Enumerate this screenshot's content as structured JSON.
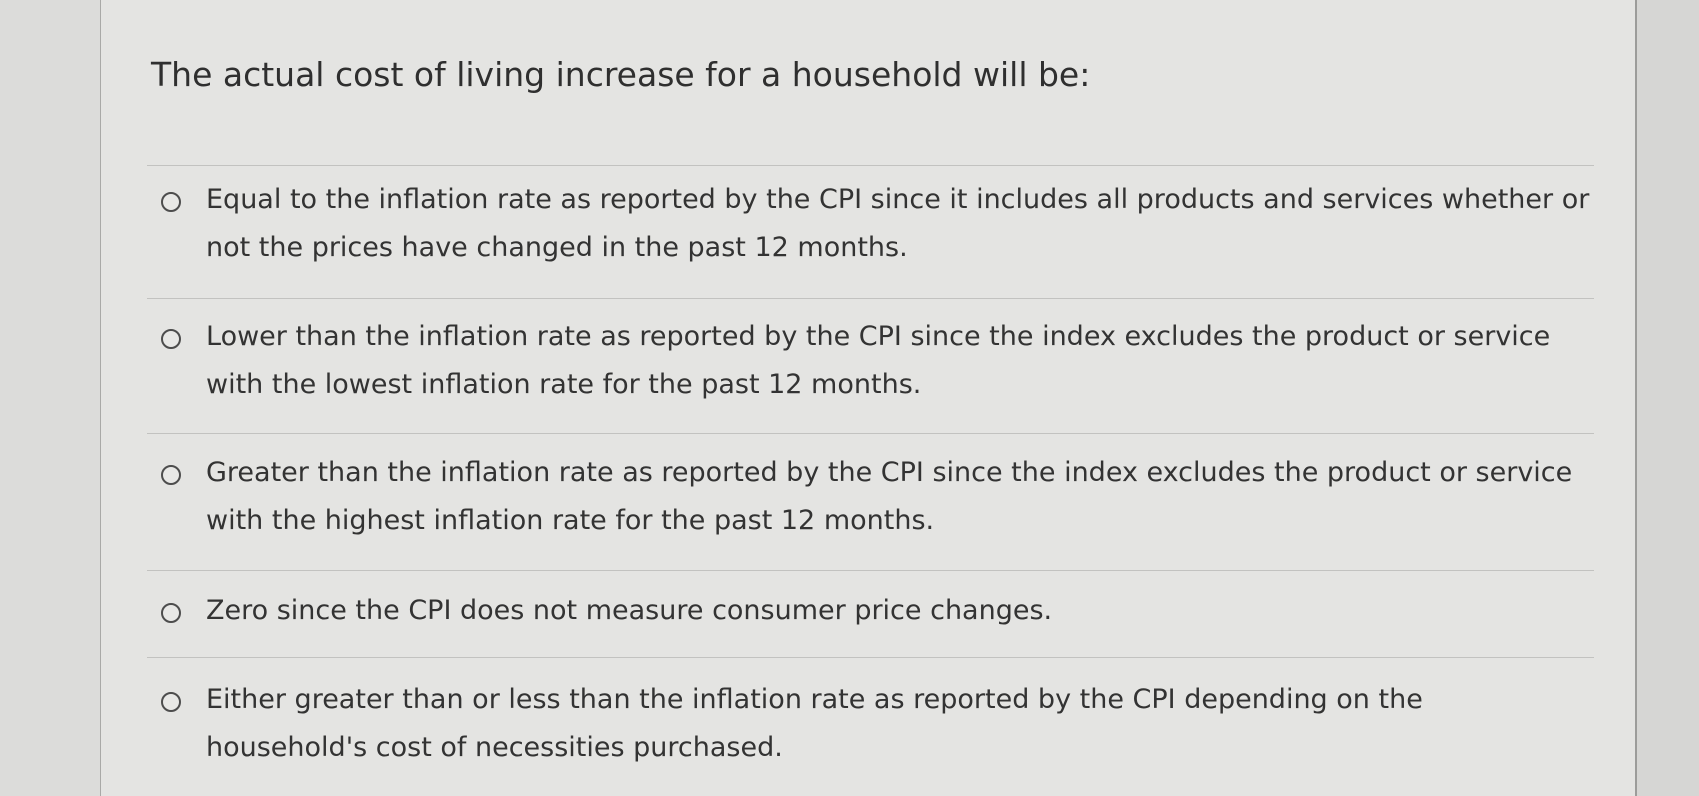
{
  "question": {
    "text": "The actual cost of living increase for a household will be:"
  },
  "options": [
    {
      "label": "Equal to the inflation rate as reported by the CPI since it includes all products and services whether or not the prices have changed in the past 12 months.",
      "selected": false
    },
    {
      "label": "Lower than the inflation rate as reported by the CPI since the index excludes the product or service with the lowest inflation rate for the past 12 months.",
      "selected": false
    },
    {
      "label": "Greater than the inflation rate as reported by the CPI since the index excludes the product or service with the highest inflation rate for the past 12 months.",
      "selected": false
    },
    {
      "label": "Zero since the CPI does not measure consumer price changes.",
      "selected": false
    },
    {
      "label": "Either greater than or less than the inflation rate as reported by the CPI depending on the household's cost of necessities purchased.",
      "selected": false
    }
  ],
  "colors": {
    "panel_background": "#e4e4e2",
    "text": "#333333",
    "radio_border": "#4d4d4d",
    "divider": "#c2c2c0"
  }
}
